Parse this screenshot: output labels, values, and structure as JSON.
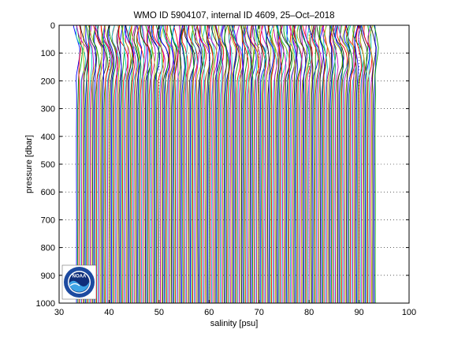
{
  "chart_data": {
    "type": "line",
    "title": "WMO ID 5904107, internal ID 4609, 25–Oct–2018",
    "xlabel": "salinity [psu]",
    "ylabel": "pressure [dbar]",
    "xlim": [
      30,
      100
    ],
    "ylim": [
      1000,
      0
    ],
    "y_reversed": true,
    "xticks": [
      "30",
      "40",
      "50",
      "60",
      "70",
      "80",
      "90",
      "100"
    ],
    "yticks": [
      "0",
      "100",
      "200",
      "300",
      "400",
      "500",
      "600",
      "700",
      "800",
      "900",
      "1000"
    ],
    "grid": "dotted, both axes",
    "legend": "none",
    "series_style": "waterfall of salinity profiles, each successive profile offset by about 0.25 psu",
    "profile_count": 240,
    "first_profile_offset_psu": 33.5,
    "offset_step_psu": 0.25,
    "profile_shape": {
      "pressure_dbar": [
        0,
        20,
        40,
        60,
        80,
        100,
        120,
        150,
        180,
        200,
        250,
        300,
        400,
        500,
        600,
        700,
        800,
        900,
        1000
      ],
      "salinity_psu": [
        34.3,
        34.3,
        34.32,
        34.45,
        34.75,
        34.85,
        34.88,
        34.82,
        34.62,
        34.55,
        34.5,
        34.48,
        34.46,
        34.46,
        34.46,
        34.46,
        34.46,
        34.47,
        34.48
      ]
    },
    "colors": [
      "#0000ff",
      "#00a000",
      "#ff0000",
      "#00c8c8",
      "#c000c0",
      "#b8b800",
      "#202020"
    ]
  },
  "logo": {
    "name": "noaa-logo",
    "text": "NOAA",
    "outer_color": "#1d4aa0",
    "ring_color": "#ffffff",
    "sky_color": "#102e7a",
    "wave_color": "#3ca3e6"
  }
}
